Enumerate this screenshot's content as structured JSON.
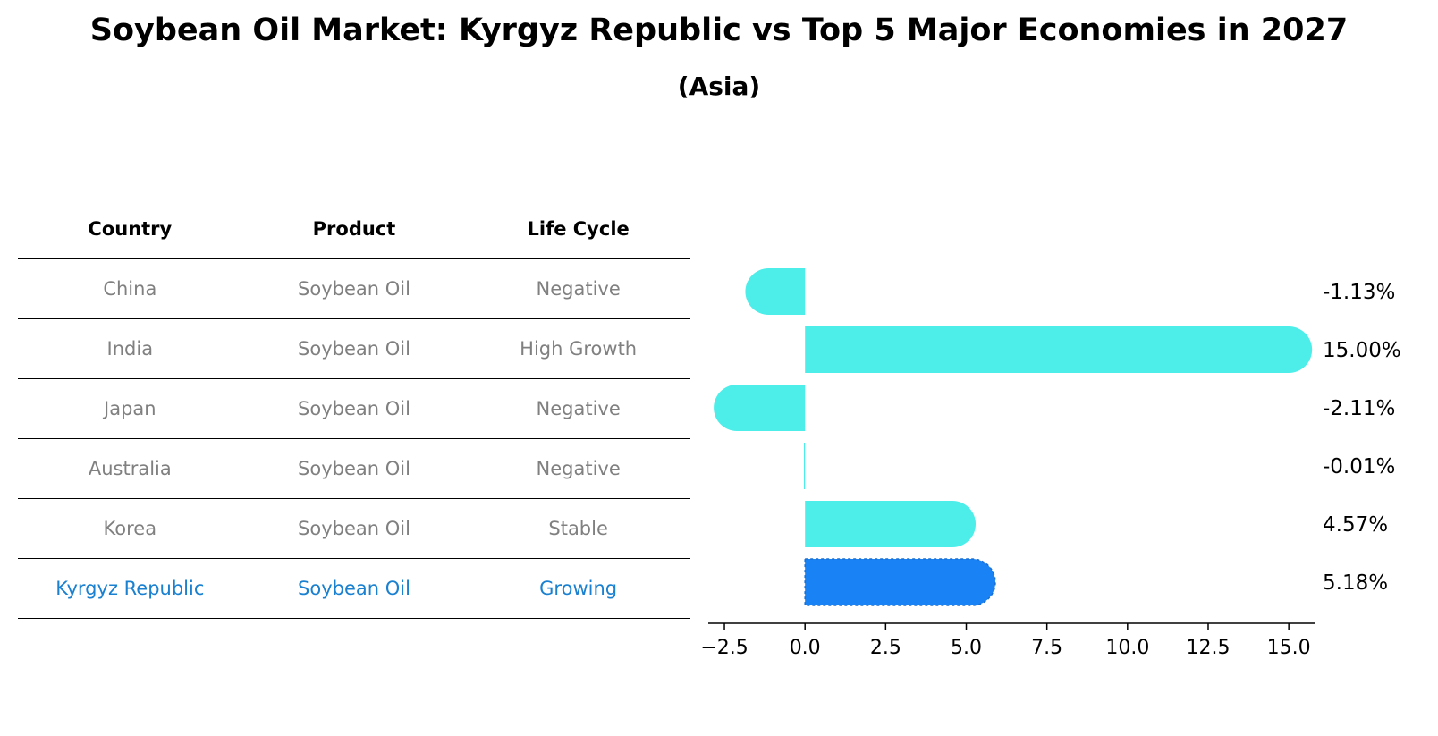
{
  "title": "Soybean Oil Market: Kyrgyz Republic vs Top 5 Major Economies in 2027",
  "subtitle": "(Asia)",
  "table": {
    "headers": [
      "Country",
      "Product",
      "Life Cycle"
    ],
    "rows": [
      {
        "country": "China",
        "product": "Soybean Oil",
        "life_cycle": "Negative"
      },
      {
        "country": "India",
        "product": "Soybean Oil",
        "life_cycle": "High Growth"
      },
      {
        "country": "Japan",
        "product": "Soybean Oil",
        "life_cycle": "Negative"
      },
      {
        "country": "Australia",
        "product": "Soybean Oil",
        "life_cycle": "Negative"
      },
      {
        "country": "Korea",
        "product": "Soybean Oil",
        "life_cycle": "Stable"
      },
      {
        "country": "Kyrgyz Republic",
        "product": "Soybean Oil",
        "life_cycle": "Growing"
      }
    ]
  },
  "chart_data": {
    "type": "bar",
    "orientation": "horizontal",
    "categories": [
      "China",
      "India",
      "Japan",
      "Australia",
      "Korea",
      "Kyrgyz Republic"
    ],
    "values": [
      -1.13,
      15.0,
      -2.11,
      -0.01,
      4.57,
      5.18
    ],
    "value_labels": [
      "-1.13%",
      "15.00%",
      "-2.11%",
      "-0.01%",
      "4.57%",
      "5.18%"
    ],
    "highlight_index": 5,
    "xlim": [
      -3.0,
      15.8
    ],
    "xticks": [
      -2.5,
      0.0,
      2.5,
      5.0,
      7.5,
      10.0,
      12.5,
      15.0
    ],
    "xtick_labels": [
      "−2.5",
      "0.0",
      "2.5",
      "5.0",
      "7.5",
      "10.0",
      "12.5",
      "15.0"
    ],
    "colors": {
      "default": "#4deeea",
      "highlight": "#1982f4",
      "highlight_text": "#1a80d0",
      "muted_text": "#808080"
    }
  }
}
